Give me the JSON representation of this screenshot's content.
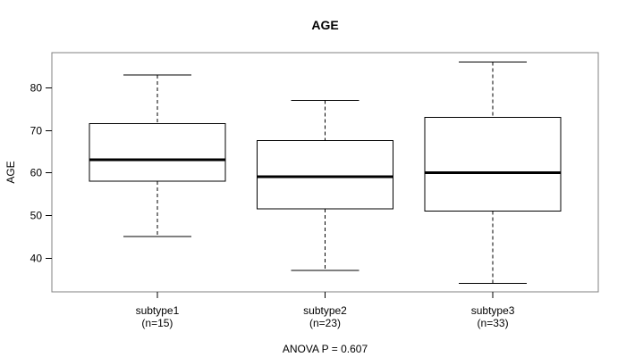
{
  "chart_data": {
    "type": "box",
    "title": "AGE",
    "ylabel": "AGE",
    "xlabel": "",
    "annotation": "ANOVA P = 0.607",
    "yticks": [
      40,
      50,
      60,
      70,
      80
    ],
    "ylim": [
      32.0,
      88.2
    ],
    "grid": false,
    "legend": null,
    "categories": [
      "subtype1",
      "subtype2",
      "subtype3"
    ],
    "category_sublabels": [
      "(n=15)",
      "(n=23)",
      "(n=33)"
    ],
    "series": [
      {
        "name": "subtype1",
        "n": 15,
        "min": 45,
        "q1": 58,
        "median": 63,
        "q3": 71.5,
        "max": 83
      },
      {
        "name": "subtype2",
        "n": 23,
        "min": 37,
        "q1": 51.5,
        "median": 59,
        "q3": 67.5,
        "max": 77
      },
      {
        "name": "subtype3",
        "n": 33,
        "min": 34,
        "q1": 51,
        "median": 60,
        "q3": 73,
        "max": 86
      }
    ],
    "colors": {
      "frame": "#808080",
      "box_border": "#000000",
      "box_fill": "#ffffff",
      "median": "#000000",
      "whisker": "#000000",
      "text": "#000000",
      "background": "#ffffff"
    }
  }
}
